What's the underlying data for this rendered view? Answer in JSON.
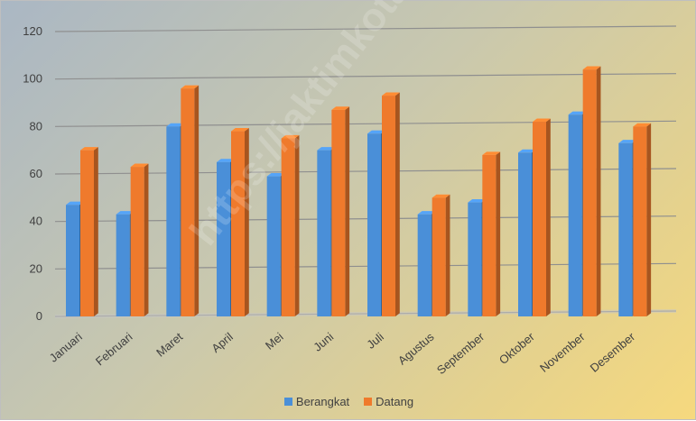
{
  "colors": {
    "series_berangkat": "#4a8fd8",
    "series_datang": "#ef7a2c",
    "gridline": "#8f8f8f",
    "text": "#404040"
  },
  "watermark": "https://jaktimkota.bps.go.id",
  "chart_data": {
    "type": "bar",
    "style": "3d-clustered-column",
    "categories": [
      "Januari",
      "Februari",
      "Maret",
      "April",
      "Mei",
      "Juni",
      "Juli",
      "Agustus",
      "September",
      "Oktober",
      "November",
      "Desember"
    ],
    "series": [
      {
        "name": "Berangkat",
        "color": "#4a8fd8",
        "values": [
          47,
          43,
          80,
          65,
          59,
          70,
          77,
          43,
          48,
          69,
          85,
          73
        ]
      },
      {
        "name": "Datang",
        "color": "#ef7a2c",
        "values": [
          70,
          63,
          96,
          78,
          75,
          87,
          93,
          50,
          68,
          82,
          104,
          80
        ]
      }
    ],
    "ylim": [
      0,
      120
    ],
    "yticks": [
      "0",
      "20",
      "40",
      "60",
      "80",
      "100",
      "120"
    ],
    "grid": true,
    "legend": "bottom"
  }
}
